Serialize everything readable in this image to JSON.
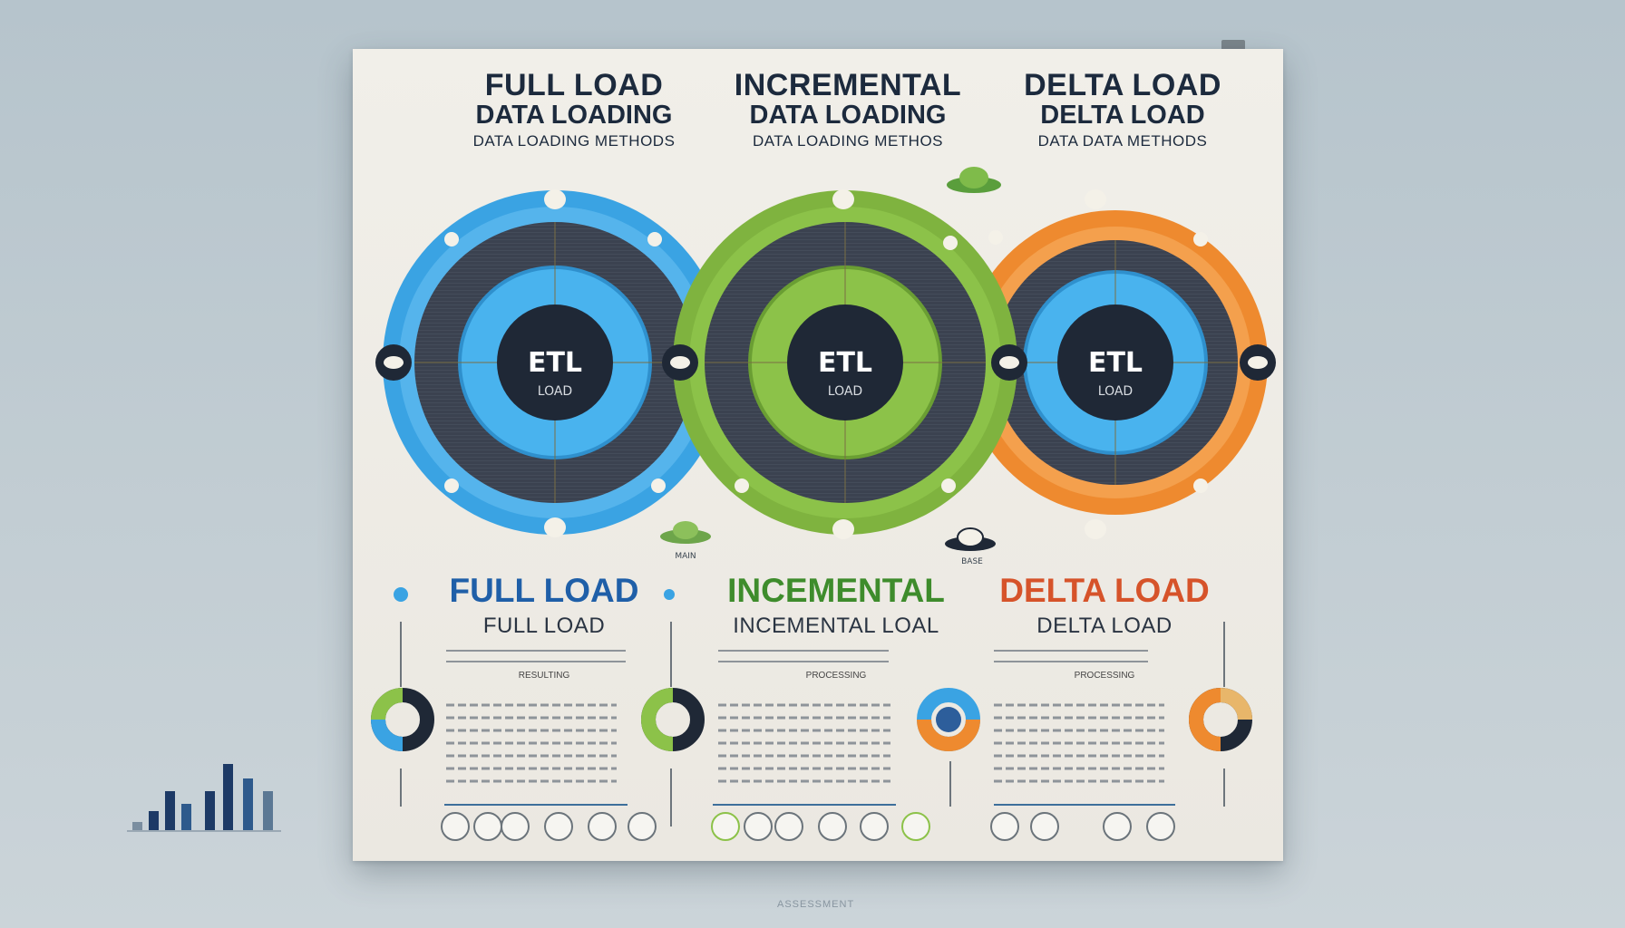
{
  "header": {
    "columns": [
      {
        "line1": "FULL LOAD",
        "line2": "DATA LOADING",
        "line3": "DATA LOADING METHODS"
      },
      {
        "line1": "INCREMENTAL",
        "line2": "DATA LOADING",
        "line3": "DATA LOADING METHOS"
      },
      {
        "line1": "DELTA LOAD",
        "line2": "DELTA LOAD",
        "line3": "DATA DATA METHODS"
      }
    ]
  },
  "circles": [
    {
      "center": "ETL",
      "sub": "LOAD",
      "color": "#3aa3e3",
      "inner": "#49b3ee"
    },
    {
      "center": "ETL",
      "sub": "LOAD",
      "color": "#7fb33f",
      "inner": "#8cc249"
    },
    {
      "center": "ETL",
      "sub": "LOAD",
      "color": "#ee8a2f",
      "inner": "#49b3ee"
    }
  ],
  "sections": [
    {
      "title": "FULL LOAD",
      "subtitle": "FULL LOAD",
      "caption": "RESULTING",
      "color": "#1f5fa8"
    },
    {
      "title": "INCEMENTAL",
      "subtitle": "INCEMENTAL LOAL",
      "caption": "PROCESSING",
      "color": "#3e8c2c"
    },
    {
      "title": "DELTA LOAD",
      "subtitle": "DELTA LOAD",
      "caption": "PROCESSING",
      "color": "#d6532a"
    }
  ],
  "labels": {
    "left_cloud": "MAIN",
    "right_cloud": "BASE"
  },
  "footer": "ASSESSMENT"
}
